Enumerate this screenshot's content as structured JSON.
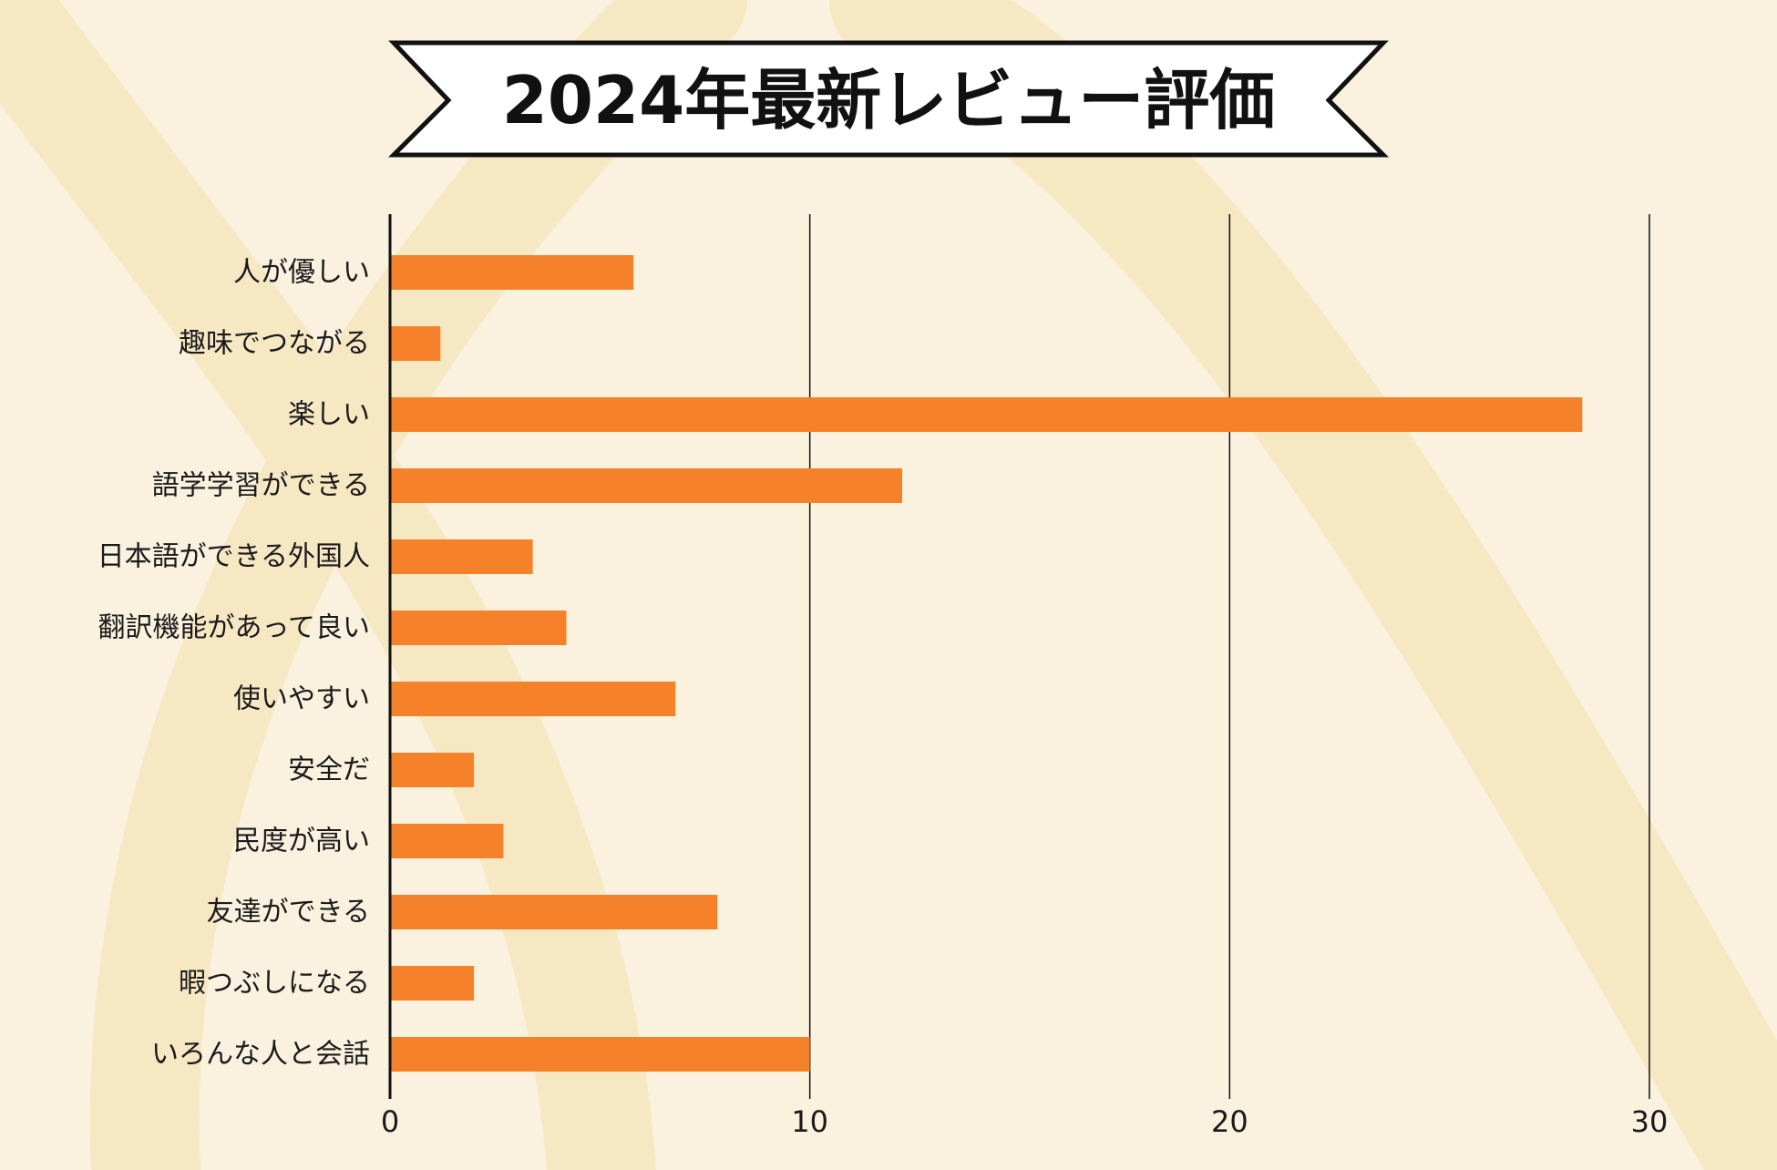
{
  "colors": {
    "background": "#FAF2DE",
    "decoration": "#F7E8C4",
    "bar": "#F5822A",
    "axis": "#111111",
    "banner_fill": "#FFFFFF",
    "banner_stroke": "#111111"
  },
  "chart_data": {
    "type": "bar",
    "orientation": "horizontal",
    "title": "2024年最新レビュー評価",
    "xlabel": "",
    "ylabel": "",
    "categories": [
      "人が優しい",
      "趣味でつながる",
      "楽しい",
      "語学学習ができる",
      "日本語ができる外国人",
      "翻訳機能があって良い",
      "使いやすい",
      "安全だ",
      "民度が高い",
      "友達ができる",
      "暇つぶしになる",
      "いろんな人と会話"
    ],
    "values": [
      5.8,
      1.2,
      28.4,
      12.2,
      3.4,
      4.2,
      6.8,
      2.0,
      2.7,
      7.8,
      2.0,
      10.0
    ],
    "xlim": [
      0,
      30
    ],
    "xticks": [
      0,
      10,
      20,
      30
    ],
    "xtick_labels": [
      "0",
      "10",
      "20",
      "30"
    ],
    "grid": "vertical-lines",
    "legend": "none"
  }
}
